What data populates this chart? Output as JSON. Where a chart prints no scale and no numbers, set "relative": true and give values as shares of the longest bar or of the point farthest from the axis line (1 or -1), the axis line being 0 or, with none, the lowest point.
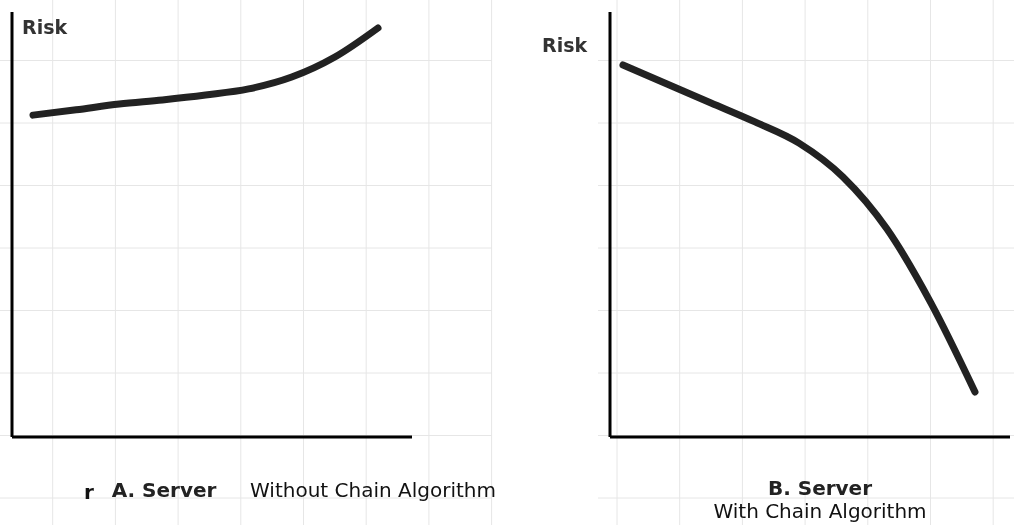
{
  "chart_data": [
    {
      "type": "line",
      "ylabel": "Risk",
      "xlabel": "A. Server",
      "annotations": [
        "r",
        "Without Chain Algorithm"
      ],
      "relative": true,
      "grid": true,
      "categories": [
        null,
        null,
        null,
        null,
        null,
        null,
        null,
        null,
        null
      ],
      "series": [
        {
          "color": "#222222",
          "values": [
            0.787,
            0.8,
            0.814,
            0.824,
            0.836,
            0.851,
            0.88,
            0.929,
            1
          ]
        }
      ]
    },
    {
      "type": "line",
      "ylabel": "Risk",
      "xlabel": "B. Server",
      "annotations": [
        "With Chain Algorithm"
      ],
      "relative": true,
      "grid": true,
      "categories": [
        null,
        null,
        null,
        null,
        null,
        null,
        null,
        null,
        null
      ],
      "series": [
        {
          "color": "#222222",
          "values": [
            1,
            0.949,
            0.898,
            0.847,
            0.79,
            0.699,
            0.559,
            0.36,
            0.121
          ]
        }
      ]
    }
  ]
}
